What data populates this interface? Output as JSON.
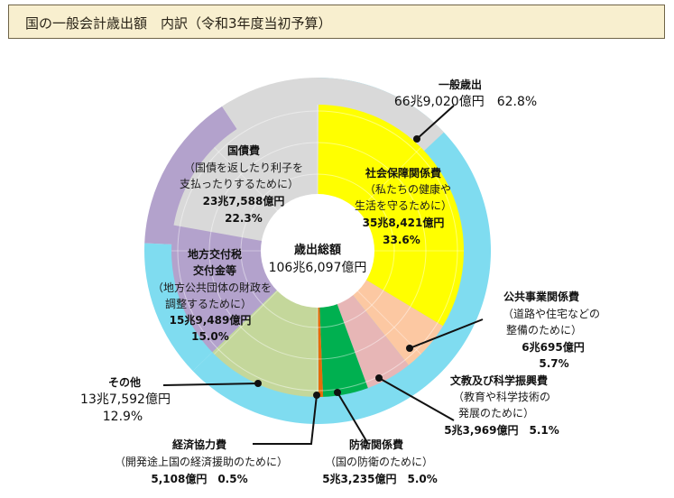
{
  "title": "国の一般会計歳出額　内訳（令和3年度当初予算）",
  "chart_data": {
    "type": "pie",
    "center_label": {
      "line1": "歳出総額",
      "line2": "106兆6,097億円"
    },
    "outer_ring": [
      {
        "name": "一般歳出",
        "amount": "66兆9,020億円",
        "percent": 62.8,
        "color": "#7fdcf0"
      },
      {
        "name": "その他",
        "amount": "13兆7,592億円",
        "percent": 12.9,
        "color": "#7fdcf0"
      },
      {
        "name": "地方交付税 交付金等",
        "percent": 15.0,
        "color": "#b3a2cc"
      },
      {
        "name": "国債費",
        "percent": 22.3,
        "color": "#d9d9d9"
      }
    ],
    "slices": [
      {
        "name": "社会保障関係費",
        "percent": 33.6,
        "color": "#ffff00"
      },
      {
        "name": "公共事業関係費",
        "percent": 5.7,
        "color": "#fcc8a2"
      },
      {
        "name": "文教及び科学振興費",
        "percent": 5.1,
        "color": "#e7b6b6"
      },
      {
        "name": "防衛関係費",
        "percent": 5.0,
        "color": "#00b050"
      },
      {
        "name": "経済協力費",
        "percent": 0.5,
        "color": "#e46c0a"
      },
      {
        "name": "その他",
        "percent": 12.9,
        "color": "#c4d79b"
      },
      {
        "name": "地方交付税交付金等",
        "percent": 15.0,
        "color": "#b3a2cc"
      },
      {
        "name": "国債費",
        "percent": 22.3,
        "color": "#d9d9d9"
      }
    ]
  },
  "labels": {
    "ippan": {
      "name": "一般歳出",
      "value": "66兆9,020億円　62.8%"
    },
    "shakai": {
      "name": "社会保障関係費",
      "note1": "（私たちの健康や",
      "note2": "生活を守るために）",
      "amount": "35兆8,421億円",
      "percent": "33.6%"
    },
    "kosai": {
      "name": "国債費",
      "note1": "（国債を返したり利子を",
      "note2": "支払ったりするために）",
      "amount": "23兆7,588億円",
      "percent": "22.3%"
    },
    "chiho": {
      "name1": "地方交付税",
      "name2": "交付金等",
      "note1": "（地方公共団体の財政を",
      "note2": "調整するために）",
      "amount": "15兆9,489億円",
      "percent": "15.0%"
    },
    "koukyo": {
      "name": "公共事業関係費",
      "note1": "（道路や住宅などの",
      "note2": "整備のために）",
      "amount": "6兆695億円",
      "percent": "5.7%"
    },
    "bunkyo": {
      "name": "文教及び科学振興費",
      "note1": "（教育や科学技術の",
      "note2": "発展のために）",
      "value": "5兆3,969億円　5.1%"
    },
    "sonota": {
      "name": "その他",
      "amount": "13兆7,592億円",
      "percent": "12.9%"
    },
    "keizai": {
      "name": "経済協力費",
      "note": "（開発途上国の経済援助のために）",
      "value": "5,108億円　0.5%"
    },
    "boei": {
      "name": "防衛関係費",
      "note": "（国の防衛のために）",
      "value": "5兆3,235億円　5.0%"
    }
  }
}
